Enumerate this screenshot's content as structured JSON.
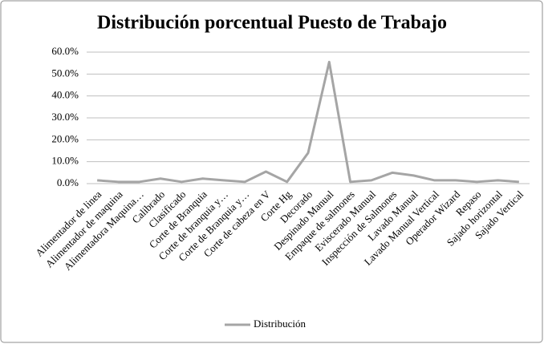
{
  "chart_data": {
    "type": "line",
    "title": "Distribución porcentual Puesto de Trabajo",
    "categories": [
      "Alimentador de linea",
      "Alimentador de maquina",
      "Alimentadora Maquina…",
      "Calibrado",
      "Clasificado",
      "Corte de Branquia",
      "Corte de branquia y…",
      "Corte de Branquia y…",
      "Corte de cabeza en V",
      "Corte Hg",
      "Decorado",
      "Despinado Manual",
      "Empaque de salmones",
      "Eviscerado Manual",
      "Inspección de Salmones",
      "Lavado Manual",
      "Lavado Manual Vertical",
      "Operador Wizard",
      "Repaso",
      "Sajado horizontal",
      "Sajado Vertical"
    ],
    "series": [
      {
        "name": "Distribución",
        "color": "#a5a5a5",
        "values": [
          1.5,
          0.8,
          0.8,
          2.3,
          0.8,
          2.3,
          1.5,
          0.8,
          5.5,
          0.8,
          14,
          55.5,
          0.8,
          1.5,
          5,
          3.7,
          1.5,
          1.5,
          0.8,
          1.5,
          0.8
        ]
      }
    ],
    "ylim": [
      0,
      60
    ],
    "yticks": [
      {
        "value": 0,
        "label": "0.0%"
      },
      {
        "value": 10,
        "label": "10.0%"
      },
      {
        "value": 20,
        "label": "20.0%"
      },
      {
        "value": 30,
        "label": "30.0%"
      },
      {
        "value": 40,
        "label": "40.0%"
      },
      {
        "value": 50,
        "label": "50.0%"
      },
      {
        "value": 60,
        "label": "60.0%"
      }
    ],
    "grid": true,
    "legend": "bottom"
  }
}
